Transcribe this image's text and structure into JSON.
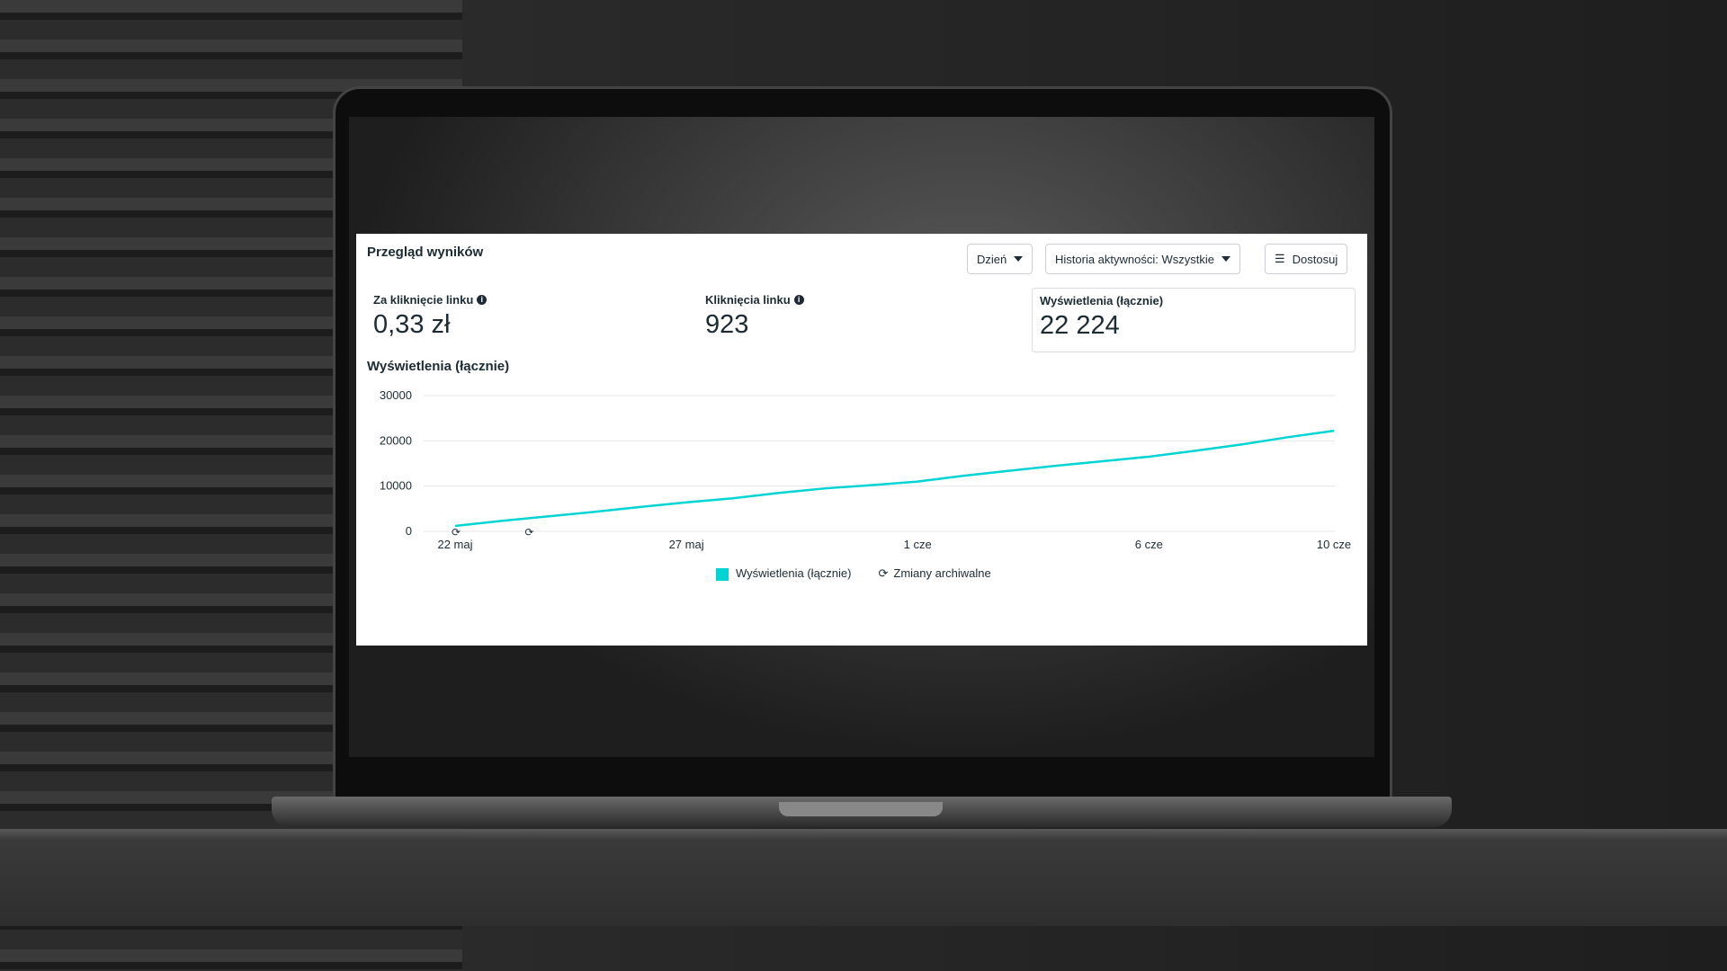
{
  "panel": {
    "title": "Przegląd wyników",
    "buttons": {
      "period": "Dzień",
      "history": "Historia aktywności: Wszystkie",
      "customize": "Dostosuj"
    },
    "metrics": [
      {
        "label": "Za kliknięcie linku",
        "value": "0,33 zł",
        "info": true
      },
      {
        "label": "Kliknięcia linku",
        "value": "923",
        "info": true
      },
      {
        "label": "Wyświetlenia (łącznie)",
        "value": "22 224",
        "selected": true
      }
    ],
    "chart_title": "Wyświetlenia (łącznie)"
  },
  "colors": {
    "accent": "#00d4d4"
  },
  "chart_data": {
    "type": "line",
    "title": "Wyświetlenia (łącznie)",
    "ylim": [
      0,
      30000
    ],
    "yticks": [
      "30000",
      "20000",
      "10000",
      "0"
    ],
    "xticks": [
      "22 maj",
      "27 maj",
      "1 cze",
      "6 cze",
      "10 cze"
    ],
    "grid": true,
    "legend_placement": "bottom",
    "x": [
      "22 maj",
      "23 maj",
      "24 maj",
      "25 maj",
      "26 maj",
      "27 maj",
      "28 maj",
      "29 maj",
      "30 maj",
      "31 maj",
      "1 cze",
      "2 cze",
      "3 cze",
      "4 cze",
      "5 cze",
      "6 cze",
      "7 cze",
      "8 cze",
      "9 cze",
      "10 cze"
    ],
    "series": [
      {
        "name": "Wyświetlenia (łącznie)",
        "values": [
          1200,
          2300,
          3300,
          4300,
          5400,
          6400,
          7300,
          8500,
          9500,
          10200,
          11000,
          12300,
          13400,
          14500,
          15500,
          16500,
          17800,
          19200,
          20800,
          22224
        ]
      }
    ],
    "archive_markers": [
      "22 maj",
      "23 maj"
    ],
    "legend": [
      "Wyświetlenia (łącznie)",
      "Zmiany archiwalne"
    ]
  }
}
